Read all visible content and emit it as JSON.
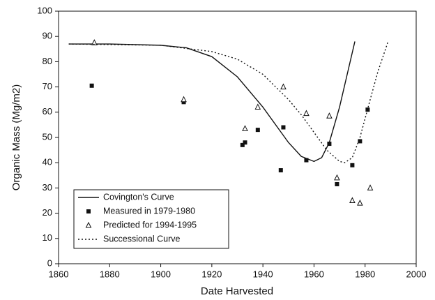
{
  "chart_data": {
    "type": "scatter",
    "xlabel": "Date Harvested",
    "ylabel": "Organic Mass (Mg/m2)",
    "xlim": [
      1860,
      2000
    ],
    "xticks": [
      1860,
      1880,
      1900,
      1920,
      1940,
      1960,
      1980,
      2000
    ],
    "ylim": [
      0,
      100
    ],
    "yticks": [
      0,
      10,
      20,
      30,
      40,
      50,
      60,
      70,
      80,
      90,
      100
    ],
    "legend": "lower left",
    "series": [
      {
        "name": "Covington's Curve",
        "type": "line",
        "style": "solid",
        "color": "#111111",
        "x": [
          1864,
          1880,
          1900,
          1910,
          1920,
          1930,
          1940,
          1950,
          1955,
          1960,
          1963,
          1966,
          1970,
          1973,
          1976
        ],
        "values": [
          87,
          87,
          86.5,
          85.5,
          82,
          74,
          62,
          48,
          42.5,
          40.5,
          42,
          48,
          62,
          75,
          88
        ]
      },
      {
        "name": "Measured in 1979-1980",
        "type": "scatter",
        "marker": "square",
        "color": "#111111",
        "x": [
          1873,
          1909,
          1932,
          1933,
          1938,
          1947,
          1948,
          1957,
          1966,
          1969,
          1975,
          1978,
          1981
        ],
        "values": [
          70.5,
          64,
          47,
          48,
          53,
          37,
          54,
          41,
          47.5,
          31.5,
          39,
          48.5,
          61
        ]
      },
      {
        "name": "Predicted for 1994-1995",
        "type": "scatter",
        "marker": "triangle",
        "color": "#111111",
        "x": [
          1874,
          1909,
          1933,
          1938,
          1948,
          1957,
          1966,
          1969,
          1975,
          1978,
          1982
        ],
        "values": [
          87.5,
          65,
          53.5,
          62,
          70,
          59.5,
          58.5,
          34,
          25,
          24,
          30
        ]
      },
      {
        "name": "Successional Curve",
        "type": "line",
        "style": "dotted",
        "color": "#111111",
        "x": [
          1864,
          1900,
          1920,
          1930,
          1940,
          1950,
          1955,
          1960,
          1965,
          1970,
          1972,
          1975,
          1978,
          1982,
          1985,
          1989
        ],
        "values": [
          87,
          86.5,
          84,
          81,
          75,
          65,
          59,
          52,
          45,
          40.5,
          40,
          42,
          50,
          65,
          76,
          88
        ]
      }
    ]
  }
}
